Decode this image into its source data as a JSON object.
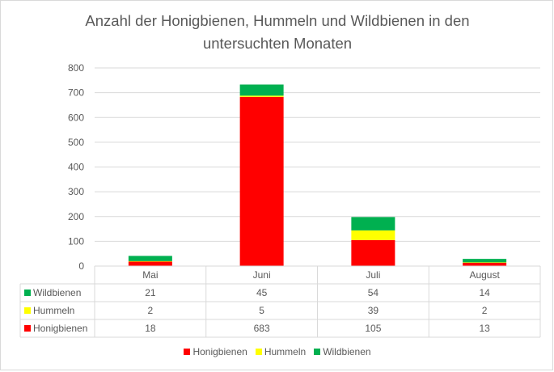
{
  "chart_data": {
    "type": "bar",
    "stacked": true,
    "title": "Anzahl der Honigbienen, Hummeln und Wildbienen in den untersuchten Monaten",
    "title_lines": [
      "Anzahl der Honigbienen, Hummeln und Wildbienen in den",
      "untersuchten Monaten"
    ],
    "categories": [
      "Mai",
      "Juni",
      "Juli",
      "August"
    ],
    "series": [
      {
        "name": "Honigbienen",
        "color": "#ff0000",
        "values": [
          18,
          683,
          105,
          13
        ]
      },
      {
        "name": "Hummeln",
        "color": "#ffff00",
        "values": [
          2,
          5,
          39,
          2
        ]
      },
      {
        "name": "Wildbienen",
        "color": "#00b050",
        "values": [
          21,
          45,
          54,
          14
        ]
      }
    ],
    "table_row_order": [
      "Wildbienen",
      "Hummeln",
      "Honigbienen"
    ],
    "ylim": [
      0,
      800
    ],
    "yticks": [
      0,
      100,
      200,
      300,
      400,
      500,
      600,
      700,
      800
    ],
    "grid": true,
    "legend": "bottom",
    "data_table": true
  }
}
